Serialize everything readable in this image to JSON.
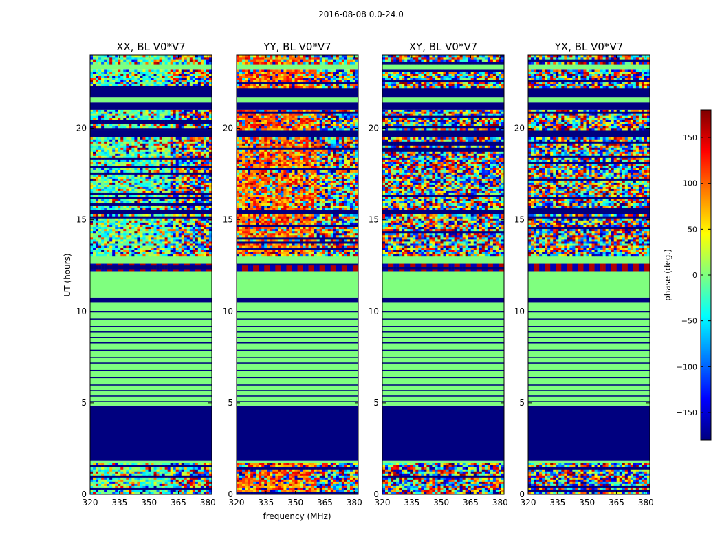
{
  "figure_title": "2016-08-08 0.0-24.0",
  "colorbar": {
    "label": "phase (deg.)",
    "min": -180,
    "max": 180,
    "ticks": [
      -150,
      -100,
      -50,
      0,
      50,
      100,
      150
    ],
    "tick_labels": [
      "−150",
      "−100",
      "−50",
      "0",
      "50",
      "100",
      "150"
    ],
    "colormap": [
      "#00007f",
      "#0000ff",
      "#007fff",
      "#00ffff",
      "#7fff7f",
      "#ffff00",
      "#ff7f00",
      "#ff0000",
      "#7f0000"
    ]
  },
  "chart_data": [
    {
      "type": "heatmap",
      "title": "XX, BL V0*V7",
      "xlabel": "",
      "ylabel": "UT (hours)",
      "xlim": [
        320,
        382
      ],
      "ylim": [
        0,
        24
      ],
      "x_ticks": [
        320,
        335,
        350,
        365,
        380
      ],
      "y_ticks": [
        0,
        5,
        10,
        15,
        20
      ],
      "value_label": "phase (deg.)"
    },
    {
      "type": "heatmap",
      "title": "YY, BL V0*V7",
      "xlabel": "frequency (MHz)",
      "ylabel": "",
      "xlim": [
        320,
        382
      ],
      "ylim": [
        0,
        24
      ],
      "x_ticks": [
        320,
        335,
        350,
        365,
        380
      ],
      "y_ticks": [
        0,
        5,
        10,
        15,
        20
      ],
      "value_label": "phase (deg.)"
    },
    {
      "type": "heatmap",
      "title": "XY, BL V0*V7",
      "xlabel": "",
      "ylabel": "",
      "xlim": [
        320,
        382
      ],
      "ylim": [
        0,
        24
      ],
      "x_ticks": [
        320,
        335,
        350,
        365,
        380
      ],
      "y_ticks": [
        0,
        5,
        10,
        15,
        20
      ],
      "value_label": "phase (deg.)"
    },
    {
      "type": "heatmap",
      "title": "YX, BL V0*V7",
      "xlabel": "",
      "ylabel": "",
      "xlim": [
        320,
        382
      ],
      "ylim": [
        0,
        24
      ],
      "x_ticks": [
        320,
        335,
        350,
        365,
        380
      ],
      "y_ticks": [
        0,
        5,
        10,
        15,
        20
      ],
      "value_label": "phase (deg.)"
    }
  ]
}
